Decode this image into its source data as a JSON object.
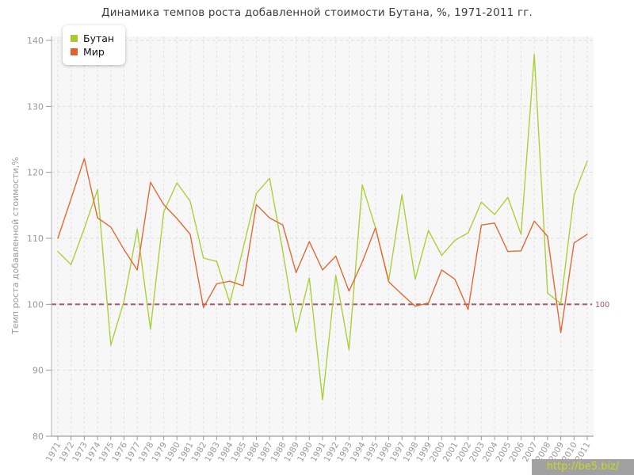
{
  "title": "Динамика темпов роста добавленной стоимости Бутана, %, 1971-2011 гг.",
  "y_axis_title": "Темп роста добавленной стоимости,%",
  "baseline_label": "100",
  "watermark_text": "http://be5.biz/",
  "legend": [
    {
      "label": "Бутан",
      "color": "#a7cb2d"
    },
    {
      "label": "Мир",
      "color": "#e0622e"
    }
  ],
  "colors": {
    "plot_bg": "#f7f7f7",
    "grid_h": "#dedede",
    "grid_v": "#e2e2e2",
    "axis_left": "#b3b3b3",
    "axis_bottom": "#8a8a8a",
    "tick": "#999999",
    "tick_text": "#999999",
    "baseline": "#a6576b",
    "title_text": "#3c3c3c",
    "watermark_bg": "#a1a1a1",
    "watermark_text": "#c8da1e"
  },
  "chart_data": {
    "type": "line",
    "title": "Динамика темпов роста добавленной стоимости Бутана, %, 1971-2011 гг.",
    "xlabel": "",
    "ylabel": "Темп роста добавленной стоимости,%",
    "ylim": [
      80,
      140
    ],
    "yticks": [
      80,
      90,
      100,
      110,
      120,
      130,
      140
    ],
    "baseline": 100,
    "grid": true,
    "legend_position": "top-left",
    "x": [
      1971,
      1972,
      1973,
      1974,
      1975,
      1976,
      1977,
      1978,
      1979,
      1980,
      1981,
      1982,
      1983,
      1984,
      1985,
      1986,
      1987,
      1988,
      1989,
      1990,
      1991,
      1992,
      1993,
      1994,
      1995,
      1996,
      1997,
      1998,
      1999,
      2000,
      2001,
      2002,
      2003,
      2004,
      2005,
      2006,
      2007,
      2008,
      2009,
      2010,
      2011
    ],
    "series": [
      {
        "name": "Бутан",
        "color": "#abd03b",
        "values": [
          108,
          106,
          111.5,
          117.4,
          93.8,
          100.5,
          111.4,
          96.2,
          114,
          118.4,
          115.6,
          107,
          106.5,
          100.2,
          108.5,
          116.8,
          119.1,
          108,
          95.8,
          104,
          85.5,
          104.4,
          93.1,
          118.1,
          111.6,
          103.6,
          116.6,
          103.8,
          111.2,
          107.4,
          109.7,
          110.8,
          115.5,
          113.6,
          116.2,
          110.6,
          137.9,
          101.7,
          100.1,
          116.5,
          121.7
        ]
      },
      {
        "name": "Мир",
        "color": "#e16a35",
        "values": [
          110,
          116,
          122.1,
          113.1,
          111.7,
          108.3,
          105.2,
          118.5,
          115.1,
          113,
          110.6,
          99.5,
          103.1,
          103.5,
          102.8,
          115.1,
          113.1,
          112,
          104.8,
          109.5,
          105.2,
          107.3,
          102,
          106.4,
          111.6,
          103.4,
          101.5,
          99.7,
          100.2,
          105.2,
          103.8,
          99.2,
          112,
          112.3,
          108,
          108.1,
          112.6,
          110.3,
          95.7,
          109.3,
          110.6
        ]
      }
    ]
  }
}
